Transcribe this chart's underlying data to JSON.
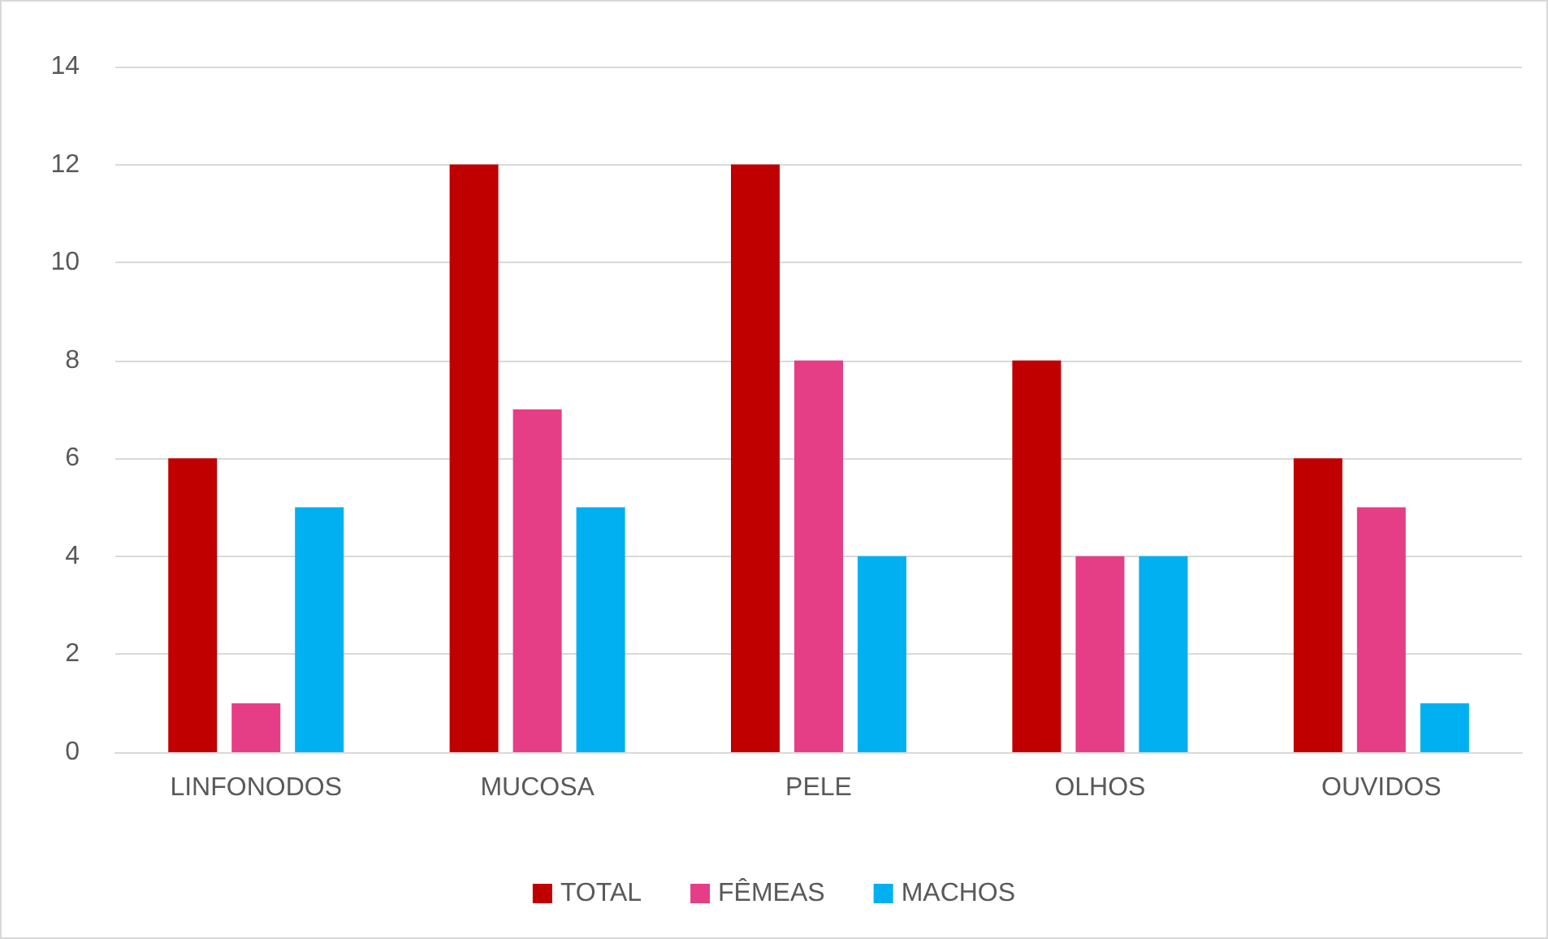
{
  "chart_data": {
    "type": "bar",
    "categories": [
      "LINFONODOS",
      "MUCOSA",
      "PELE",
      "OLHOS",
      "OUVIDOS"
    ],
    "series": [
      {
        "name": "TOTAL",
        "color": "#c00000",
        "values": [
          6,
          12,
          12,
          8,
          6
        ]
      },
      {
        "name": "FÊMEAS",
        "color": "#e63e86",
        "values": [
          1,
          7,
          8,
          4,
          5
        ]
      },
      {
        "name": "MACHOS",
        "color": "#00b0f0",
        "values": [
          5,
          5,
          4,
          4,
          1
        ]
      }
    ],
    "ylim": [
      0,
      14
    ],
    "yticks": [
      0,
      2,
      4,
      6,
      8,
      10,
      12,
      14
    ],
    "grid": "y",
    "legend": "bottom"
  }
}
